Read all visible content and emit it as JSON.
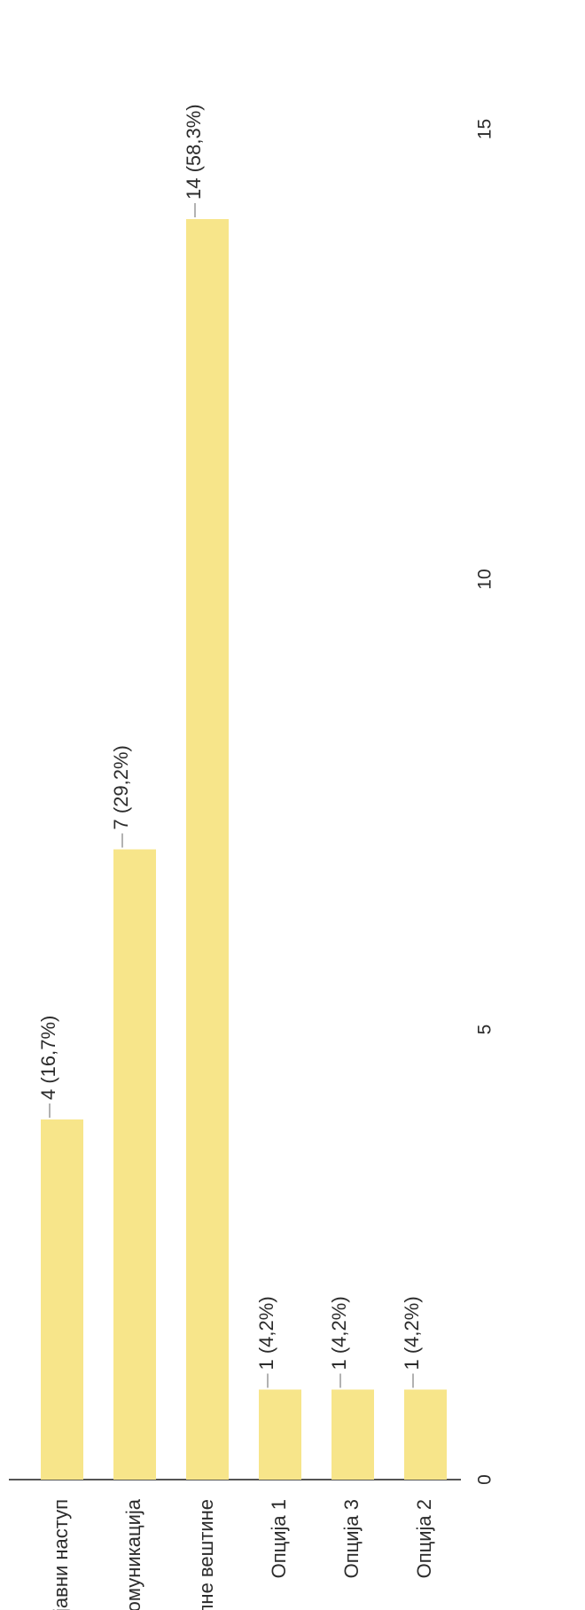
{
  "chart_data": {
    "type": "bar",
    "orientation": "horizontal",
    "rotation": "rotated 90° counter-clockwise",
    "categories": [
      "јавни наступ",
      "комуникација",
      "дигиталне вештине",
      "Опција 1",
      "Опција 3",
      "Опција 2"
    ],
    "values": [
      4,
      7,
      14,
      1,
      1,
      1
    ],
    "data_labels": [
      "4 (16,7%)",
      "7 (29,2%)",
      "14 (58,3%)",
      "1 (4,2%)",
      "1 (4,2%)",
      "1 (4,2%)"
    ],
    "x_ticks": [
      0,
      5,
      10,
      15
    ],
    "xlim": [
      0,
      16
    ],
    "title": "",
    "xlabel": "",
    "ylabel": "",
    "grid": false,
    "legend": "none",
    "colors": {
      "bar": "#f7e58a",
      "axis": "#555555",
      "leader": "#999999",
      "text": "#2b2b2b"
    }
  }
}
